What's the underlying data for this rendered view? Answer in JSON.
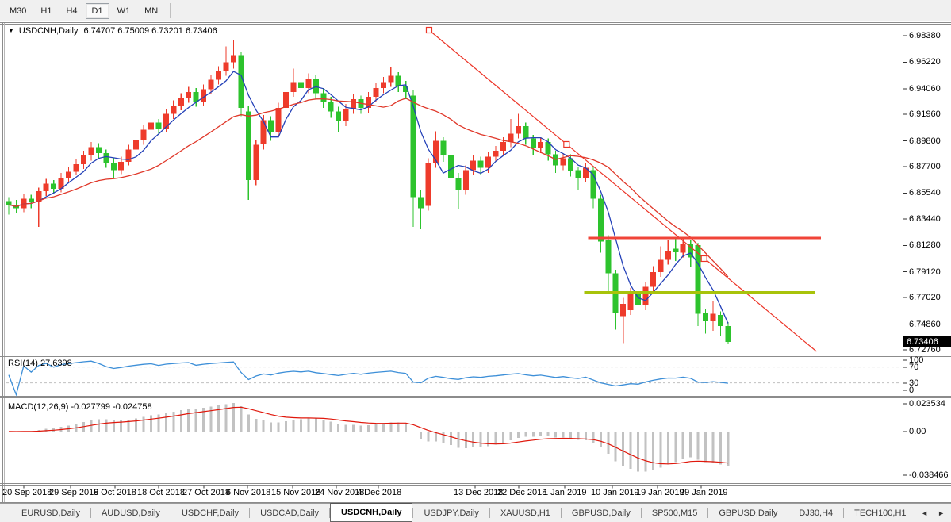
{
  "toolbar": {
    "timeframes": [
      "M30",
      "H1",
      "H4",
      "D1",
      "W1",
      "MN"
    ],
    "active": "D1"
  },
  "chart": {
    "symbol_title": "USDCNH,Daily",
    "ohlc_text": "6.74707 6.75009 6.73201 6.73406",
    "current_price": "6.73406"
  },
  "icons": {
    "dropdown": "▼",
    "tab_prev": "◄",
    "tab_next": "►"
  },
  "price_axis": {
    "labels": [
      "6.98380",
      "6.96220",
      "6.94060",
      "6.91960",
      "6.89800",
      "6.87700",
      "6.85540",
      "6.83440",
      "6.81280",
      "6.79120",
      "6.77020",
      "6.74860",
      "6.72760"
    ]
  },
  "time_axis": {
    "dates": [
      "20 Sep 2018",
      "29 Sep 2018",
      "9 Oct 2018",
      "18 Oct 2018",
      "27 Oct 2018",
      "6 Nov 2018",
      "15 Nov 2018",
      "24 Nov 2018",
      "4 Dec 2018",
      "13 Dec 2018",
      "22 Dec 2018",
      "1 Jan 2019",
      "10 Jan 2019",
      "19 Jan 2019",
      "29 Jan 2019"
    ]
  },
  "rsi_panel": {
    "label": "RSI(14)",
    "value": "27.6398",
    "axis_labels": [
      "100",
      "70",
      "30",
      "0"
    ]
  },
  "macd_panel": {
    "label": "MACD(12,26,9)",
    "value_main": "-0.027799",
    "value_signal": "-0.024758",
    "axis_labels": [
      "0.023534",
      "0.00",
      "-0.038466"
    ]
  },
  "tabs": {
    "items": [
      "EURUSD,Daily",
      "AUDUSD,Daily",
      "USDCHF,Daily",
      "USDCAD,Daily",
      "USDCNH,Daily",
      "USDJPY,Daily",
      "XAUUSD,H1",
      "GBPUSD,Daily",
      "SP500,M15",
      "GBPUSD,Daily",
      "DJ30,H4",
      "TECH100,H1"
    ],
    "active_index": 4
  },
  "colors": {
    "bull": "#ee3b2b",
    "bear": "#2dc32d",
    "ma_fast": "#2441b8",
    "ma_slow": "#e0382a",
    "trendline": "#ec3427",
    "hline_red": "#f04438",
    "hline_olive": "#a8c30b",
    "rsi_line": "#3d8fd8",
    "rsi_level_dash": "#c0c0c0",
    "macd_hist": "#c2c2c2",
    "macd_signal": "#e0180c",
    "border_dark": "#8c8c8c",
    "axis_border": "#5a5a5a",
    "badge_bg": "#000000",
    "badge_text": "#ffffff"
  },
  "chart_data": {
    "type": "candlestick",
    "title": "USDCNH,Daily",
    "timeframe": "D1",
    "grid": false,
    "legend_position": "none",
    "price_ylim": [
      6.7276,
      6.9838
    ],
    "price_tick_values": [
      6.9838,
      6.9622,
      6.9406,
      6.9196,
      6.898,
      6.877,
      6.8554,
      6.8344,
      6.8128,
      6.7912,
      6.7702,
      6.7486,
      6.7276
    ],
    "date_tick_label_x": [
      3,
      62,
      118,
      173,
      230,
      285,
      342,
      397,
      450,
      572,
      627,
      685,
      745,
      802,
      857
    ],
    "candles": [
      [
        6.849,
        6.852,
        6.838,
        6.846
      ],
      [
        6.846,
        6.85,
        6.839,
        6.843
      ],
      [
        6.843,
        6.855,
        6.84,
        6.851
      ],
      [
        6.851,
        6.854,
        6.843,
        6.848
      ],
      [
        6.848,
        6.86,
        6.828,
        6.857
      ],
      [
        6.857,
        6.867,
        6.853,
        6.863
      ],
      [
        6.863,
        6.866,
        6.855,
        6.859
      ],
      [
        6.859,
        6.872,
        6.856,
        6.868
      ],
      [
        6.868,
        6.877,
        6.864,
        6.873
      ],
      [
        6.873,
        6.883,
        6.87,
        6.879
      ],
      [
        6.879,
        6.89,
        6.875,
        6.886
      ],
      [
        6.886,
        6.897,
        6.882,
        6.893
      ],
      [
        6.893,
        6.896,
        6.884,
        6.888
      ],
      [
        6.888,
        6.891,
        6.876,
        6.88
      ],
      [
        6.88,
        6.884,
        6.868,
        6.874
      ],
      [
        6.874,
        6.885,
        6.871,
        6.881
      ],
      [
        6.881,
        6.895,
        6.878,
        6.891
      ],
      [
        6.891,
        6.903,
        6.888,
        6.899
      ],
      [
        6.899,
        6.911,
        6.895,
        6.907
      ],
      [
        6.907,
        6.917,
        6.903,
        6.913
      ],
      [
        6.913,
        6.916,
        6.904,
        6.908
      ],
      [
        6.908,
        6.924,
        6.905,
        6.92
      ],
      [
        6.92,
        6.931,
        6.916,
        6.927
      ],
      [
        6.927,
        6.937,
        6.923,
        6.933
      ],
      [
        6.933,
        6.942,
        6.929,
        6.938
      ],
      [
        6.938,
        6.941,
        6.926,
        6.93
      ],
      [
        6.93,
        6.944,
        6.927,
        6.94
      ],
      [
        6.94,
        6.952,
        6.936,
        6.948
      ],
      [
        6.948,
        6.959,
        6.944,
        6.955
      ],
      [
        6.955,
        6.975,
        6.951,
        6.962
      ],
      [
        6.962,
        6.98,
        6.957,
        6.968
      ],
      [
        6.968,
        6.971,
        6.918,
        6.925
      ],
      [
        6.922,
        6.927,
        6.85,
        6.866
      ],
      [
        6.866,
        6.899,
        6.862,
        6.895
      ],
      [
        6.895,
        6.919,
        6.891,
        6.915
      ],
      [
        6.915,
        6.918,
        6.898,
        6.905
      ],
      [
        6.905,
        6.929,
        6.901,
        6.925
      ],
      [
        6.925,
        6.942,
        6.921,
        6.938
      ],
      [
        6.938,
        6.957,
        6.934,
        6.946
      ],
      [
        6.946,
        6.95,
        6.936,
        6.941
      ],
      [
        6.941,
        6.953,
        6.937,
        6.949
      ],
      [
        6.949,
        6.952,
        6.932,
        6.937
      ],
      [
        6.937,
        6.941,
        6.925,
        6.93
      ],
      [
        6.93,
        6.934,
        6.917,
        6.922
      ],
      [
        6.922,
        6.926,
        6.905,
        6.914
      ],
      [
        6.914,
        6.928,
        6.91,
        6.924
      ],
      [
        6.924,
        6.936,
        6.92,
        6.932
      ],
      [
        6.932,
        6.935,
        6.92,
        6.925
      ],
      [
        6.925,
        6.938,
        6.921,
        6.934
      ],
      [
        6.934,
        6.945,
        6.93,
        6.941
      ],
      [
        6.941,
        6.95,
        6.937,
        6.946
      ],
      [
        6.946,
        6.958,
        6.942,
        6.951
      ],
      [
        6.951,
        6.954,
        6.938,
        6.943
      ],
      [
        6.943,
        6.947,
        6.932,
        6.938
      ],
      [
        6.935,
        6.939,
        6.828,
        6.852
      ],
      [
        6.852,
        6.858,
        6.826,
        6.843
      ],
      [
        6.845,
        6.884,
        6.841,
        6.88
      ],
      [
        6.88,
        6.906,
        6.876,
        6.898
      ],
      [
        6.898,
        6.901,
        6.881,
        6.886
      ],
      [
        6.886,
        6.889,
        6.86,
        6.868
      ],
      [
        6.868,
        6.872,
        6.842,
        6.858
      ],
      [
        6.858,
        6.878,
        6.854,
        6.874
      ],
      [
        6.874,
        6.886,
        6.87,
        6.882
      ],
      [
        6.882,
        6.885,
        6.87,
        6.876
      ],
      [
        6.876,
        6.889,
        6.872,
        6.885
      ],
      [
        6.885,
        6.894,
        6.881,
        6.89
      ],
      [
        6.89,
        6.901,
        6.886,
        6.897
      ],
      [
        6.897,
        6.916,
        6.893,
        6.904
      ],
      [
        6.904,
        6.92,
        6.9,
        6.91
      ],
      [
        6.91,
        6.913,
        6.895,
        6.9
      ],
      [
        6.9,
        6.903,
        6.886,
        6.892
      ],
      [
        6.892,
        6.901,
        6.888,
        6.897
      ],
      [
        6.897,
        6.9,
        6.882,
        6.887
      ],
      [
        6.887,
        6.89,
        6.872,
        6.878
      ],
      [
        6.878,
        6.888,
        6.874,
        6.884
      ],
      [
        6.884,
        6.887,
        6.869,
        6.874
      ],
      [
        6.874,
        6.877,
        6.858,
        6.868
      ],
      [
        6.868,
        6.88,
        6.864,
        6.876
      ],
      [
        6.874,
        6.877,
        6.843,
        6.851
      ],
      [
        6.851,
        6.854,
        6.807,
        6.816
      ],
      [
        6.817,
        6.821,
        6.773,
        6.79
      ],
      [
        6.79,
        6.793,
        6.744,
        6.758
      ],
      [
        6.755,
        6.77,
        6.733,
        6.765
      ],
      [
        6.76,
        6.778,
        6.756,
        6.773
      ],
      [
        6.773,
        6.776,
        6.752,
        6.764
      ],
      [
        6.764,
        6.783,
        6.76,
        6.779
      ],
      [
        6.779,
        6.796,
        6.775,
        6.791
      ],
      [
        6.791,
        6.812,
        6.787,
        6.801
      ],
      [
        6.801,
        6.817,
        6.797,
        6.808
      ],
      [
        6.81,
        6.8185,
        6.8,
        6.807
      ],
      [
        6.807,
        6.819,
        6.803,
        6.814
      ],
      [
        6.814,
        6.817,
        6.795,
        6.803
      ],
      [
        6.813,
        6.815,
        6.747,
        6.757
      ],
      [
        6.758,
        6.761,
        6.741,
        6.751
      ],
      [
        6.751,
        6.767,
        6.743,
        6.757
      ],
      [
        6.756,
        6.759,
        6.739,
        6.747
      ],
      [
        6.74707,
        6.75009,
        6.73201,
        6.73406
      ]
    ],
    "overlays": {
      "ma_fast_period": 5,
      "ma_slow_period": 20,
      "trendline": {
        "from": {
          "i": 56.1,
          "price": 6.98833
        },
        "to": {
          "i": 92.8,
          "price": 6.80201
        },
        "extends_to": {
          "i": 107.8,
          "price": 6.72631
        },
        "handles": true
      },
      "hlines": [
        {
          "price": 6.8188,
          "i_from": 77.3,
          "i_to": 108.4,
          "color_key": "hline_red",
          "width": 3
        },
        {
          "price": 6.7744,
          "i_from": 76.8,
          "i_to": 107.6,
          "color_key": "hline_olive",
          "width": 3
        }
      ]
    },
    "indicators": {
      "rsi": {
        "period": 14,
        "current": 27.6398,
        "levels": [
          70,
          30
        ],
        "range": [
          0,
          100
        ]
      },
      "macd": {
        "fast": 12,
        "slow": 26,
        "signal": 9,
        "current_main": -0.027799,
        "current_signal": -0.024758,
        "axis_values": [
          0.023534,
          0.0,
          -0.038466
        ]
      }
    }
  }
}
